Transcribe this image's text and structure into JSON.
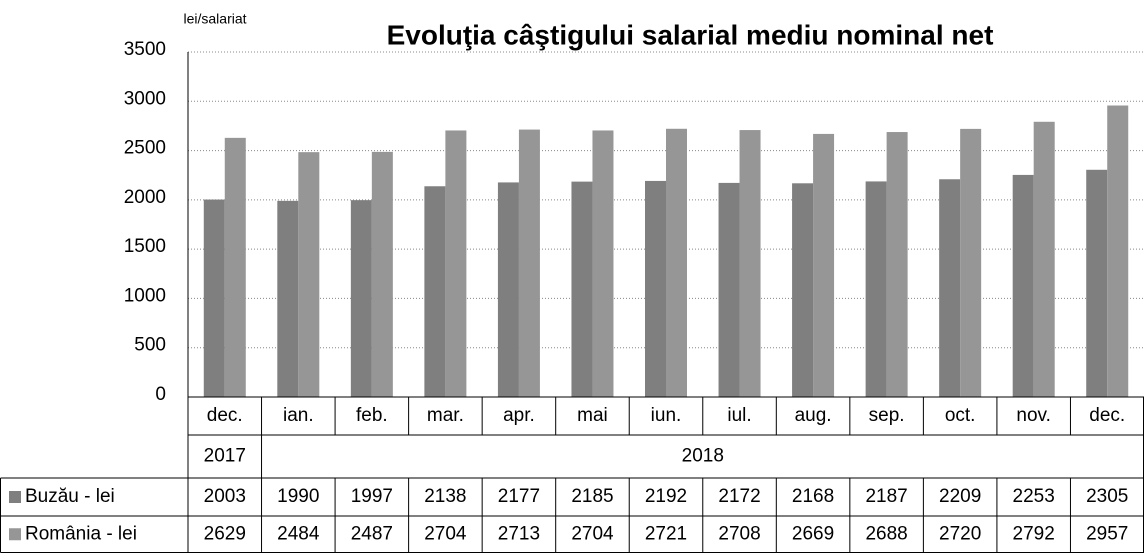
{
  "chart_data": {
    "type": "bar",
    "title": "Evoluţia câştigului salarial mediu nominal net",
    "y_label": "lei/salariat",
    "categories": [
      "dec.",
      "ian.",
      "feb.",
      "mar.",
      "apr.",
      "mai",
      "iun.",
      "iul.",
      "aug.",
      "sep.",
      "oct.",
      "nov.",
      "dec."
    ],
    "years": [
      "2017",
      "2018",
      "2018",
      "2018",
      "2018",
      "2018",
      "2018",
      "2018",
      "2018",
      "2018",
      "2018",
      "2018",
      "2018"
    ],
    "series": [
      {
        "name": "Buzău - lei",
        "color": "#7f7f7f",
        "values": [
          2003,
          1990,
          1997,
          2138,
          2177,
          2185,
          2192,
          2172,
          2168,
          2187,
          2209,
          2253,
          2305
        ]
      },
      {
        "name": "România - lei",
        "color": "#969696",
        "values": [
          2629,
          2484,
          2487,
          2704,
          2713,
          2704,
          2721,
          2708,
          2669,
          2688,
          2720,
          2792,
          2957
        ]
      }
    ],
    "ylim": [
      0,
      3500
    ],
    "yticks": [
      0,
      500,
      1000,
      1500,
      2000,
      2500,
      3000,
      3500
    ],
    "grid": true
  }
}
